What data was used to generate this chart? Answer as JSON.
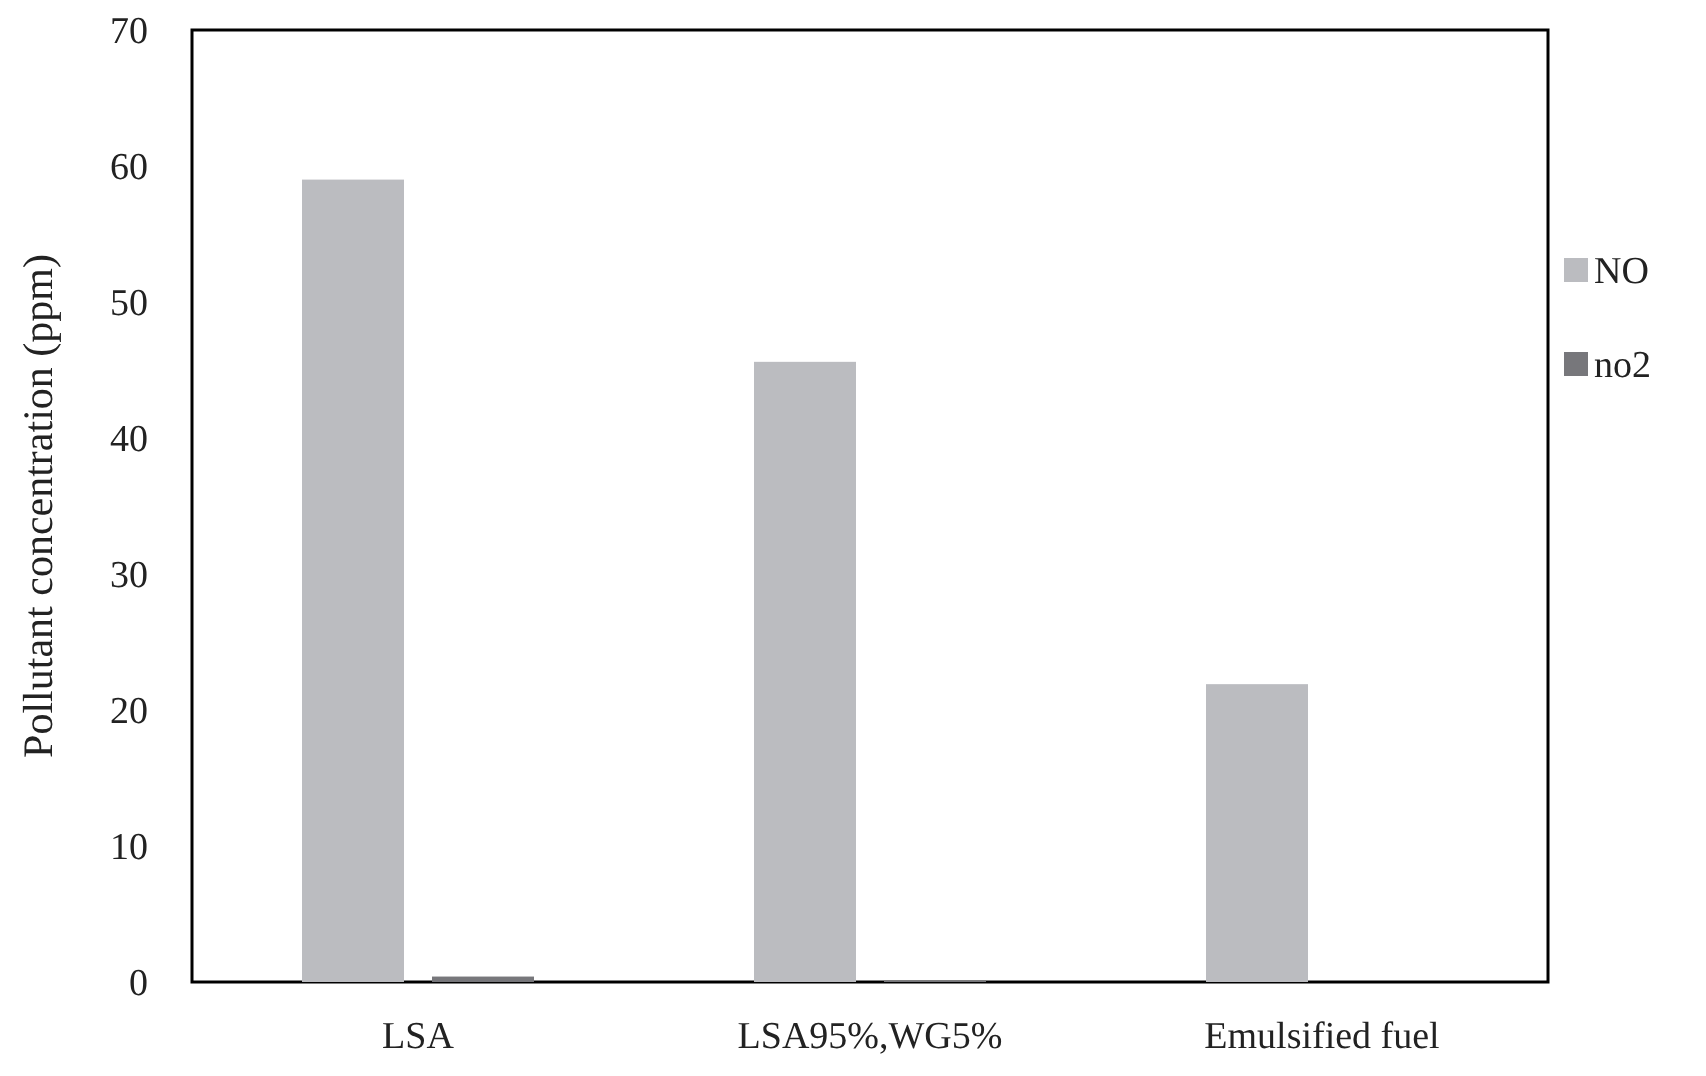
{
  "chart_data": {
    "type": "bar",
    "ylabel": "Pollutant concentration (ppm)",
    "categories": [
      "LSA",
      "LSA95%,WG5%",
      "Emulsified fuel"
    ],
    "series": [
      {
        "name": "NO",
        "color": "#bbbcc0",
        "values": [
          59,
          45.6,
          21.9
        ]
      },
      {
        "name": "no2",
        "color": "#77777b",
        "values": [
          0.4,
          0.1,
          0
        ]
      }
    ],
    "ylim": [
      0,
      70
    ],
    "yticks": [
      0,
      10,
      20,
      30,
      40,
      50,
      60,
      70
    ],
    "grid": false,
    "legend": "right"
  }
}
